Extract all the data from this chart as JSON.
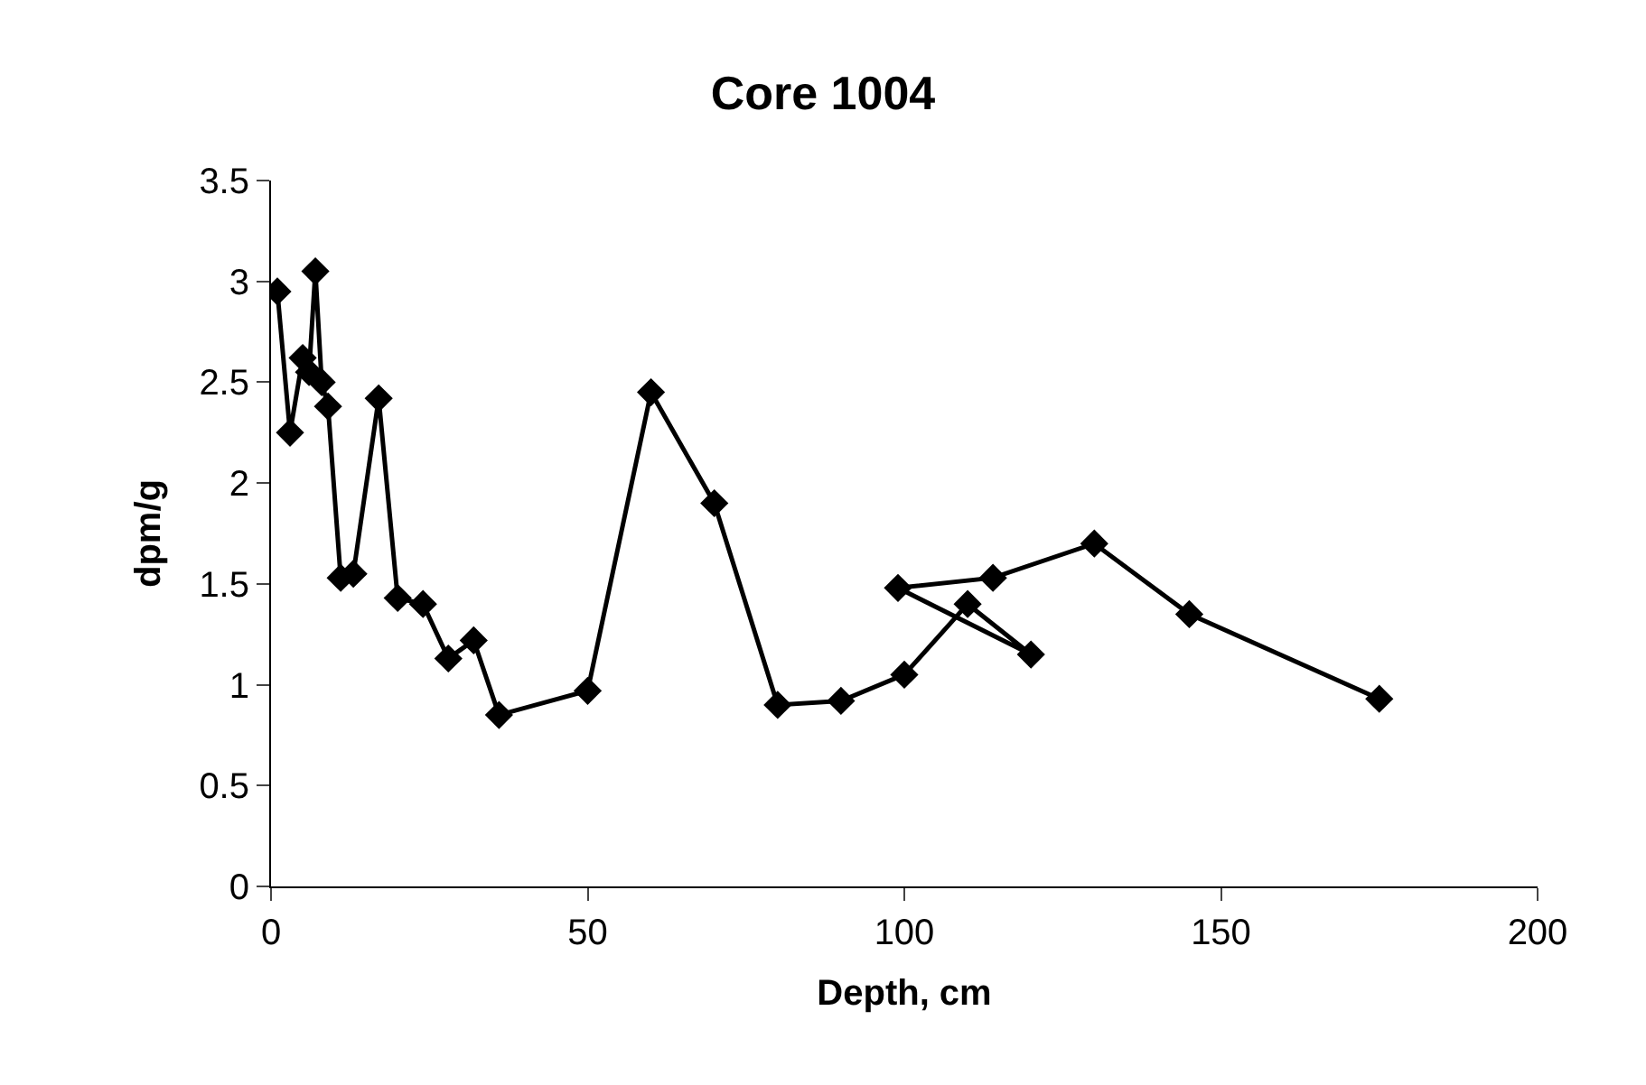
{
  "chart_data": {
    "type": "line",
    "title": "Core 1004",
    "xlabel": "Depth, cm",
    "ylabel": "dpm/g",
    "x": [
      1,
      3,
      5,
      6,
      7,
      8,
      9,
      11,
      13,
      17,
      20,
      24,
      28,
      32,
      36,
      50,
      60,
      70,
      80,
      90,
      100,
      110,
      120,
      99,
      114,
      130,
      145,
      175
    ],
    "series": [
      {
        "color": "#000000",
        "values": [
          2.95,
          2.25,
          2.62,
          2.55,
          3.05,
          2.5,
          2.38,
          1.53,
          1.55,
          2.42,
          1.43,
          1.4,
          1.13,
          1.22,
          0.85,
          0.97,
          2.45,
          1.9,
          0.9,
          0.92,
          1.05,
          1.4,
          1.15,
          1.48,
          1.53,
          1.7,
          1.35,
          0.93
        ]
      }
    ],
    "xlim": [
      0,
      200
    ],
    "xticks": [
      0,
      50,
      100,
      150,
      200
    ],
    "ylim": [
      0,
      3.5
    ],
    "yticks": [
      0,
      0.5,
      1,
      1.5,
      2,
      2.5,
      3,
      3.5
    ],
    "marker": "diamond",
    "line_style": "solid"
  }
}
